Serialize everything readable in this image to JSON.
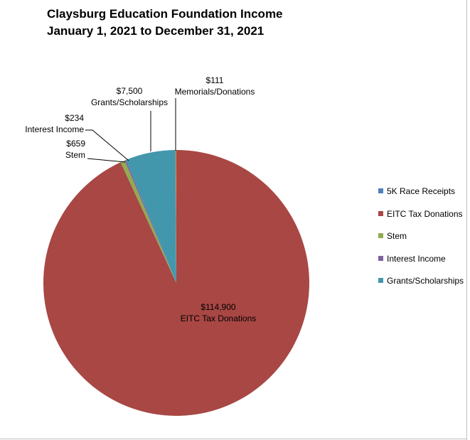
{
  "chart_data": {
    "type": "pie",
    "title": "Claysburg Education Foundation Income",
    "subtitle": "January 1, 2021  to December 31, 2021",
    "slices": [
      {
        "name": "5K Race Receipts",
        "value": 0,
        "color": "#4f81bd",
        "value_label": "",
        "category_label": ""
      },
      {
        "name": "EITC Tax Donations",
        "value": 114900,
        "color": "#a84744",
        "value_label": "$114,900",
        "category_label": "EITC Tax Donations"
      },
      {
        "name": "Stem",
        "value": 659,
        "color": "#8fac50",
        "value_label": "$659",
        "category_label": "Stem"
      },
      {
        "name": "Interest Income",
        "value": 234,
        "color": "#7e62a1",
        "value_label": "$234",
        "category_label": "Interest Income"
      },
      {
        "name": "Grants/Scholarships",
        "value": 7500,
        "color": "#4397ad",
        "value_label": "$7,500",
        "category_label": "Grants/Scholarships"
      },
      {
        "name": "Memorials/Donations",
        "value": 111,
        "color": "#e68a3b",
        "value_label": "$111",
        "category_label": "Memorials/Donations"
      }
    ],
    "legend": {
      "placement": "right",
      "entries": [
        "5K Race Receipts",
        "EITC Tax Donations",
        "Stem",
        "Interest Income",
        "Grants/Scholarships"
      ]
    }
  }
}
